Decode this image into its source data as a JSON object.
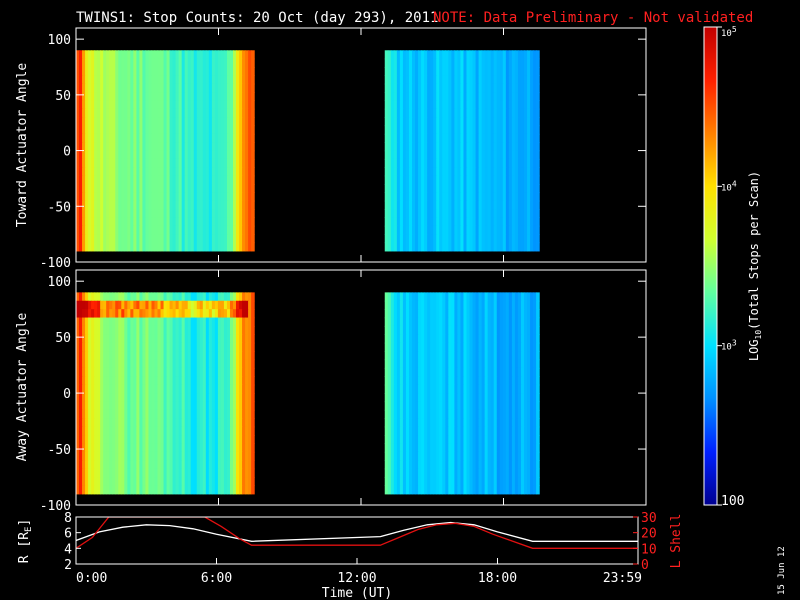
{
  "title": "TWINS1: Stop Counts: 20 Oct (day 293), 2011",
  "note": "NOTE: Data Preliminary - Not validated",
  "date_stamp": "15 Jun 12",
  "colors": {
    "background": "#000000",
    "foreground": "#ffffff",
    "note": "#ff2020",
    "trace_R": "#ffffff",
    "trace_L": "#e01010"
  },
  "colorbar": {
    "label_prefix": "LOG",
    "label_sub": "10",
    "label_suffix": "(Total Stops per Scan)",
    "scale": "log",
    "range": [
      100,
      100000
    ],
    "tick_labels": [
      {
        "base": "100",
        "exp": "",
        "value": 100
      },
      {
        "base": "10",
        "exp": "3",
        "value": 1000
      },
      {
        "base": "10",
        "exp": "4",
        "value": 10000
      },
      {
        "base": "10",
        "exp": "5",
        "value": 100000
      }
    ],
    "colormap": [
      "#000090",
      "#0020ff",
      "#0090ff",
      "#00e0ff",
      "#60ffa0",
      "#d0ff30",
      "#ffe000",
      "#ff8000",
      "#ff2000",
      "#c00000"
    ]
  },
  "chart_data": [
    {
      "type": "heatmap",
      "ylabel": "Toward Actuator Angle",
      "ylim": [
        -100,
        110
      ],
      "yticks": [
        100,
        50,
        0,
        -50,
        -100
      ],
      "xlim": [
        0,
        24
      ],
      "data_coverage_hours": [
        [
          0.0,
          7.5
        ],
        [
          13.0,
          19.5
        ]
      ],
      "angle_range": [
        -90,
        90
      ],
      "log10_counts_by_time": {
        "hours": [
          0.0,
          0.2,
          0.5,
          1.0,
          2.0,
          3.0,
          4.0,
          5.0,
          5.5,
          6.0,
          6.5,
          7.0,
          7.5,
          13.0,
          13.3,
          14.0,
          16.0,
          18.0,
          19.5
        ],
        "mean": [
          4.4,
          4.6,
          3.8,
          3.6,
          3.4,
          3.4,
          3.3,
          3.1,
          3.1,
          3.1,
          3.3,
          4.3,
          4.5,
          3.4,
          3.0,
          2.9,
          2.9,
          2.8,
          2.8
        ]
      }
    },
    {
      "type": "heatmap",
      "ylabel": "Away Actuator Angle",
      "ylim": [
        -100,
        110
      ],
      "yticks": [
        100,
        50,
        0,
        -50,
        -100
      ],
      "xlim": [
        0,
        24
      ],
      "data_coverage_hours": [
        [
          0.0,
          7.5
        ],
        [
          13.0,
          19.5
        ]
      ],
      "angle_range": [
        -90,
        90
      ],
      "high_count_band_angle": [
        65,
        85
      ],
      "log10_counts_by_time": {
        "hours": [
          0.0,
          0.2,
          0.5,
          1.0,
          2.0,
          3.0,
          4.0,
          5.0,
          5.5,
          6.0,
          6.5,
          7.0,
          7.5,
          13.0,
          13.3,
          14.0,
          16.0,
          18.0,
          19.5
        ],
        "mean": [
          4.4,
          4.6,
          3.8,
          3.6,
          3.4,
          3.4,
          3.3,
          3.1,
          3.1,
          3.1,
          3.3,
          4.3,
          4.5,
          3.4,
          3.0,
          2.9,
          2.9,
          2.8,
          2.8
        ]
      }
    },
    {
      "type": "line",
      "xlabel": "Time (UT)",
      "xlim": [
        0,
        24
      ],
      "xtick_labels": [
        "0:00",
        "6:00",
        "12:00",
        "18:00",
        "23:59"
      ],
      "xtick_values": [
        0,
        6,
        12,
        18,
        24
      ],
      "ylabel_left": "R [R",
      "ylabel_left_sub": "E",
      "ylabel_left_end": "]",
      "ylim_left": [
        2,
        8
      ],
      "yticks_left": [
        8,
        6,
        4,
        2
      ],
      "ylabel_right": "L Shell",
      "ylim_right": [
        0,
        30
      ],
      "yticks_right": [
        30,
        20,
        10,
        0
      ],
      "series": [
        {
          "axis": "left",
          "x": [
            0,
            1,
            2,
            3,
            4,
            5,
            6,
            7.5,
            13,
            14,
            15,
            16,
            17,
            18,
            19.5,
            24
          ],
          "y": [
            5.0,
            6.1,
            6.7,
            7.0,
            6.9,
            6.5,
            5.8,
            4.9,
            5.5,
            6.3,
            7.0,
            7.3,
            7.0,
            6.1,
            4.9,
            4.9
          ]
        },
        {
          "axis": "right",
          "x": [
            0,
            0.7,
            1.4,
            5.5,
            6.2,
            7.0,
            7.5,
            13,
            13.8,
            14.6,
            15.4,
            16.2,
            17.0,
            17.8,
            19.5,
            24
          ],
          "y": [
            10,
            17,
            30,
            30,
            24,
            16,
            12,
            12,
            17,
            22,
            25,
            26,
            24,
            19,
            10,
            10
          ]
        }
      ]
    }
  ]
}
